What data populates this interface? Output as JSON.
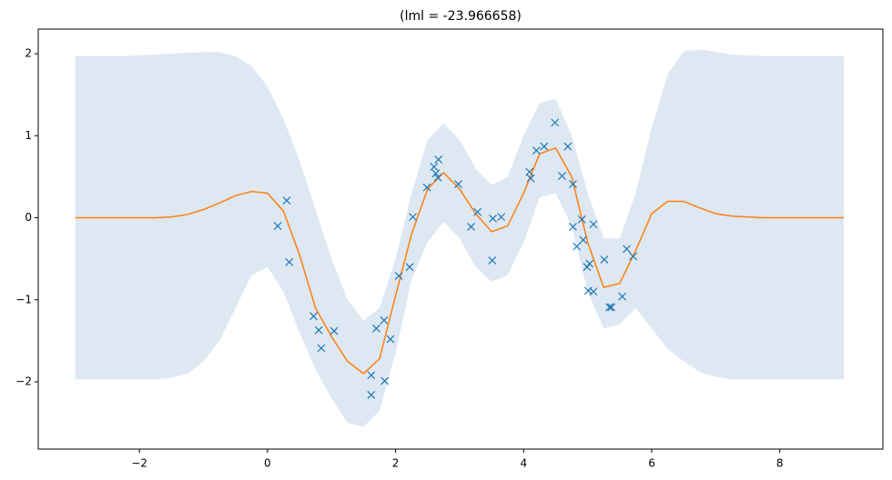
{
  "chart_data": {
    "type": "line",
    "title": "(lml = -23.966658)",
    "x": [
      -3,
      -2.75,
      -2.5,
      -2.25,
      -2,
      -1.75,
      -1.5,
      -1.25,
      -1,
      -0.75,
      -0.5,
      -0.25,
      0,
      0.25,
      0.5,
      0.75,
      1,
      1.25,
      1.5,
      1.75,
      2,
      2.25,
      2.5,
      2.75,
      3,
      3.25,
      3.5,
      3.75,
      4,
      4.25,
      4.5,
      4.75,
      5,
      5.25,
      5.5,
      5.75,
      6,
      6.25,
      6.5,
      6.75,
      7,
      7.25,
      7.5,
      7.75,
      8,
      8.25,
      8.5,
      8.75,
      9
    ],
    "values": [
      0,
      0,
      0,
      0,
      0,
      0,
      0.01,
      0.04,
      0.1,
      0.18,
      0.27,
      0.32,
      0.3,
      0.08,
      -0.45,
      -1.1,
      -1.45,
      -1.75,
      -1.9,
      -1.72,
      -0.95,
      -0.2,
      0.35,
      0.55,
      0.35,
      0.05,
      -0.17,
      -0.1,
      0.3,
      0.78,
      0.85,
      0.5,
      -0.3,
      -0.85,
      -0.8,
      -0.4,
      0.05,
      0.2,
      0.2,
      0.12,
      0.05,
      0.02,
      0.01,
      0,
      0,
      0,
      0,
      0,
      0
    ],
    "color": "#ff7f0e",
    "band": {
      "color": "#dde8f3",
      "upper": [
        1.97,
        1.97,
        1.97,
        1.97,
        1.98,
        1.99,
        2.0,
        2.01,
        2.02,
        2.02,
        1.97,
        1.85,
        1.6,
        1.2,
        0.7,
        0.1,
        -0.5,
        -1.0,
        -1.25,
        -1.1,
        -0.5,
        0.3,
        0.95,
        1.15,
        0.95,
        0.6,
        0.4,
        0.5,
        1.0,
        1.4,
        1.45,
        1.0,
        0.3,
        -0.25,
        -0.25,
        0.3,
        1.1,
        1.75,
        2.03,
        2.05,
        2.02,
        1.99,
        1.98,
        1.97,
        1.97,
        1.97,
        1.97,
        1.97,
        1.97
      ],
      "lower": [
        -1.97,
        -1.97,
        -1.97,
        -1.97,
        -1.97,
        -1.97,
        -1.95,
        -1.9,
        -1.75,
        -1.5,
        -1.1,
        -0.7,
        -0.6,
        -0.9,
        -1.4,
        -1.85,
        -2.2,
        -2.5,
        -2.55,
        -2.35,
        -1.65,
        -0.75,
        -0.3,
        -0.05,
        -0.25,
        -0.6,
        -0.78,
        -0.7,
        -0.3,
        0.25,
        0.3,
        -0.1,
        -0.9,
        -1.35,
        -1.3,
        -1.1,
        -1.35,
        -1.6,
        -1.75,
        -1.88,
        -1.94,
        -1.97,
        -1.97,
        -1.97,
        -1.97,
        -1.97,
        -1.97,
        -1.97,
        -1.97
      ]
    },
    "points": {
      "color": "#1f77b4",
      "x": [
        0.16,
        0.3,
        0.34,
        0.72,
        0.8,
        0.84,
        1.04,
        1.62,
        1.62,
        1.7,
        1.82,
        1.83,
        1.92,
        2.05,
        2.22,
        2.27,
        2.49,
        2.6,
        2.63,
        2.67,
        2.66,
        2.98,
        3.18,
        3.28,
        3.51,
        3.52,
        3.65,
        4.09,
        4.11,
        4.2,
        4.32,
        4.49,
        4.6,
        4.69,
        4.77,
        4.77,
        4.83,
        4.91,
        4.93,
        4.99,
        5.03,
        5.01,
        5.09,
        5.09,
        5.26,
        5.34,
        5.37,
        5.54,
        5.61,
        5.71
      ],
      "y": [
        -0.1,
        0.21,
        -0.54,
        -1.2,
        -1.37,
        -1.59,
        -1.38,
        -1.92,
        -2.16,
        -1.35,
        -1.25,
        -1.99,
        -1.48,
        -0.71,
        -0.6,
        0.01,
        0.37,
        0.62,
        0.54,
        0.71,
        0.49,
        0.41,
        -0.11,
        0.07,
        -0.52,
        -0.01,
        0.01,
        0.56,
        0.48,
        0.82,
        0.87,
        1.16,
        0.51,
        0.87,
        0.41,
        -0.11,
        -0.35,
        -0.02,
        -0.27,
        -0.6,
        -0.56,
        -0.89,
        -0.9,
        -0.08,
        -0.51,
        -1.09,
        -1.09,
        -0.96,
        -0.38,
        -0.47
      ]
    },
    "xlim": [
      -3.58,
      9.61
    ],
    "ylim": [
      -2.82,
      2.3
    ],
    "xticks": [
      {
        "value": -2,
        "label": "−2"
      },
      0,
      2,
      4,
      6,
      8
    ],
    "yticks": [
      {
        "value": -2,
        "label": "−2"
      },
      {
        "value": -1,
        "label": "−1"
      },
      0,
      1,
      2
    ]
  }
}
